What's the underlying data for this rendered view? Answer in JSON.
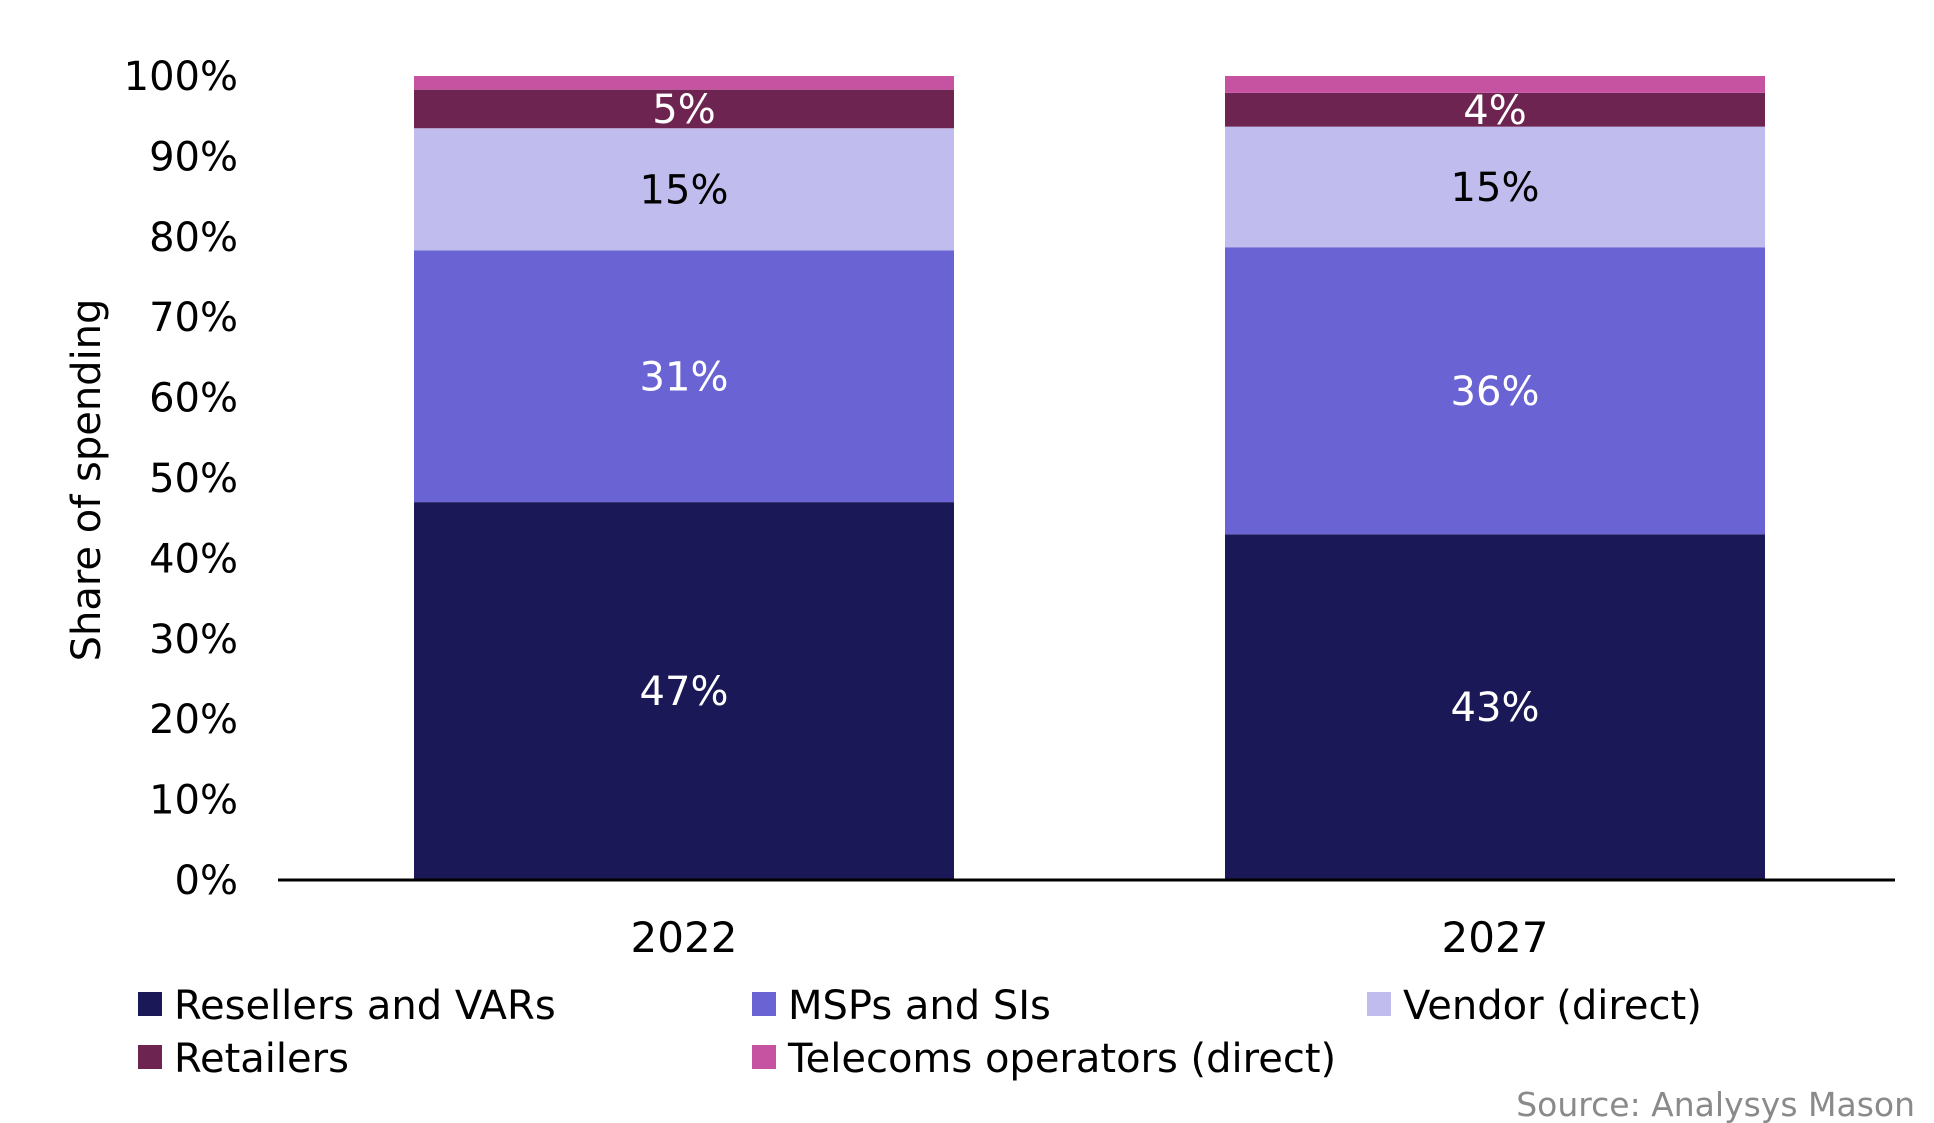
{
  "chart_data": {
    "type": "bar",
    "stacked": true,
    "ylabel": "Share of spending",
    "xlabel": "",
    "ylim": [
      0,
      100
    ],
    "yticks": [
      0,
      10,
      20,
      30,
      40,
      50,
      60,
      70,
      80,
      90,
      100
    ],
    "ytick_format": "{v}%",
    "categories": [
      "2022",
      "2027"
    ],
    "series": [
      {
        "name": "Resellers and VARs",
        "color": "#1b1857",
        "values": [
          47,
          43
        ],
        "labels": [
          "47%",
          "43%"
        ],
        "label_color": "#ffffff"
      },
      {
        "name": "MSPs and SIs",
        "color": "#6963d3",
        "values": [
          31.3,
          35.7
        ],
        "labels": [
          "31%",
          "36%"
        ],
        "label_color": "#ffffff"
      },
      {
        "name": "Vendor (direct)",
        "color": "#c0bdee",
        "values": [
          15.2,
          15.0
        ],
        "labels": [
          "15%",
          "15%"
        ],
        "label_color": "#000000"
      },
      {
        "name": "Retailers",
        "color": "#6e2450",
        "values": [
          4.8,
          4.2
        ],
        "labels": [
          "5%",
          "4%"
        ],
        "label_color": "#ffffff"
      },
      {
        "name": "Telecoms operators (direct)",
        "color": "#c553a2",
        "values": [
          1.7,
          2.1
        ],
        "labels": [
          "",
          ""
        ],
        "label_color": "#ffffff"
      }
    ],
    "legend_position": "bottom",
    "grid": false
  },
  "source": "Source: Analysys Mason"
}
